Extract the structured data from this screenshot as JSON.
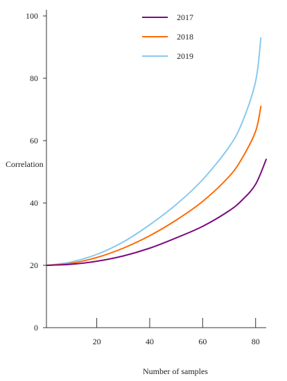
{
  "chart_data": {
    "type": "line",
    "title": "",
    "xlabel": "Number of samples",
    "ylabel": "Correlation",
    "xlim": [
      1,
      84
    ],
    "ylim": [
      0,
      100
    ],
    "x_ticks": [
      20,
      40,
      60,
      80
    ],
    "y_ticks": [
      0,
      20,
      40,
      60,
      80,
      100
    ],
    "grid": false,
    "legend_position": "top-center",
    "series": [
      {
        "name": "2017",
        "color": "#7b0a82",
        "x": [
          1,
          10,
          20,
          30,
          40,
          50,
          60,
          70,
          75,
          80,
          84
        ],
        "y": [
          20,
          20.3,
          21.3,
          23,
          25.5,
          28.8,
          32.5,
          37.5,
          41,
          46,
          54
        ]
      },
      {
        "name": "2018",
        "color": "#ff6a00",
        "x": [
          1,
          10,
          20,
          30,
          40,
          50,
          60,
          70,
          75,
          80,
          82
        ],
        "y": [
          20,
          20.6,
          22.5,
          25.5,
          29.5,
          34.5,
          40.5,
          48.5,
          54.5,
          63,
          71
        ]
      },
      {
        "name": "2019",
        "color": "#89c8ee",
        "x": [
          1,
          10,
          20,
          30,
          40,
          50,
          60,
          70,
          75,
          80,
          82
        ],
        "y": [
          20,
          21,
          23.5,
          27.5,
          33,
          39.5,
          47.5,
          58,
          66,
          79,
          93
        ]
      }
    ]
  }
}
